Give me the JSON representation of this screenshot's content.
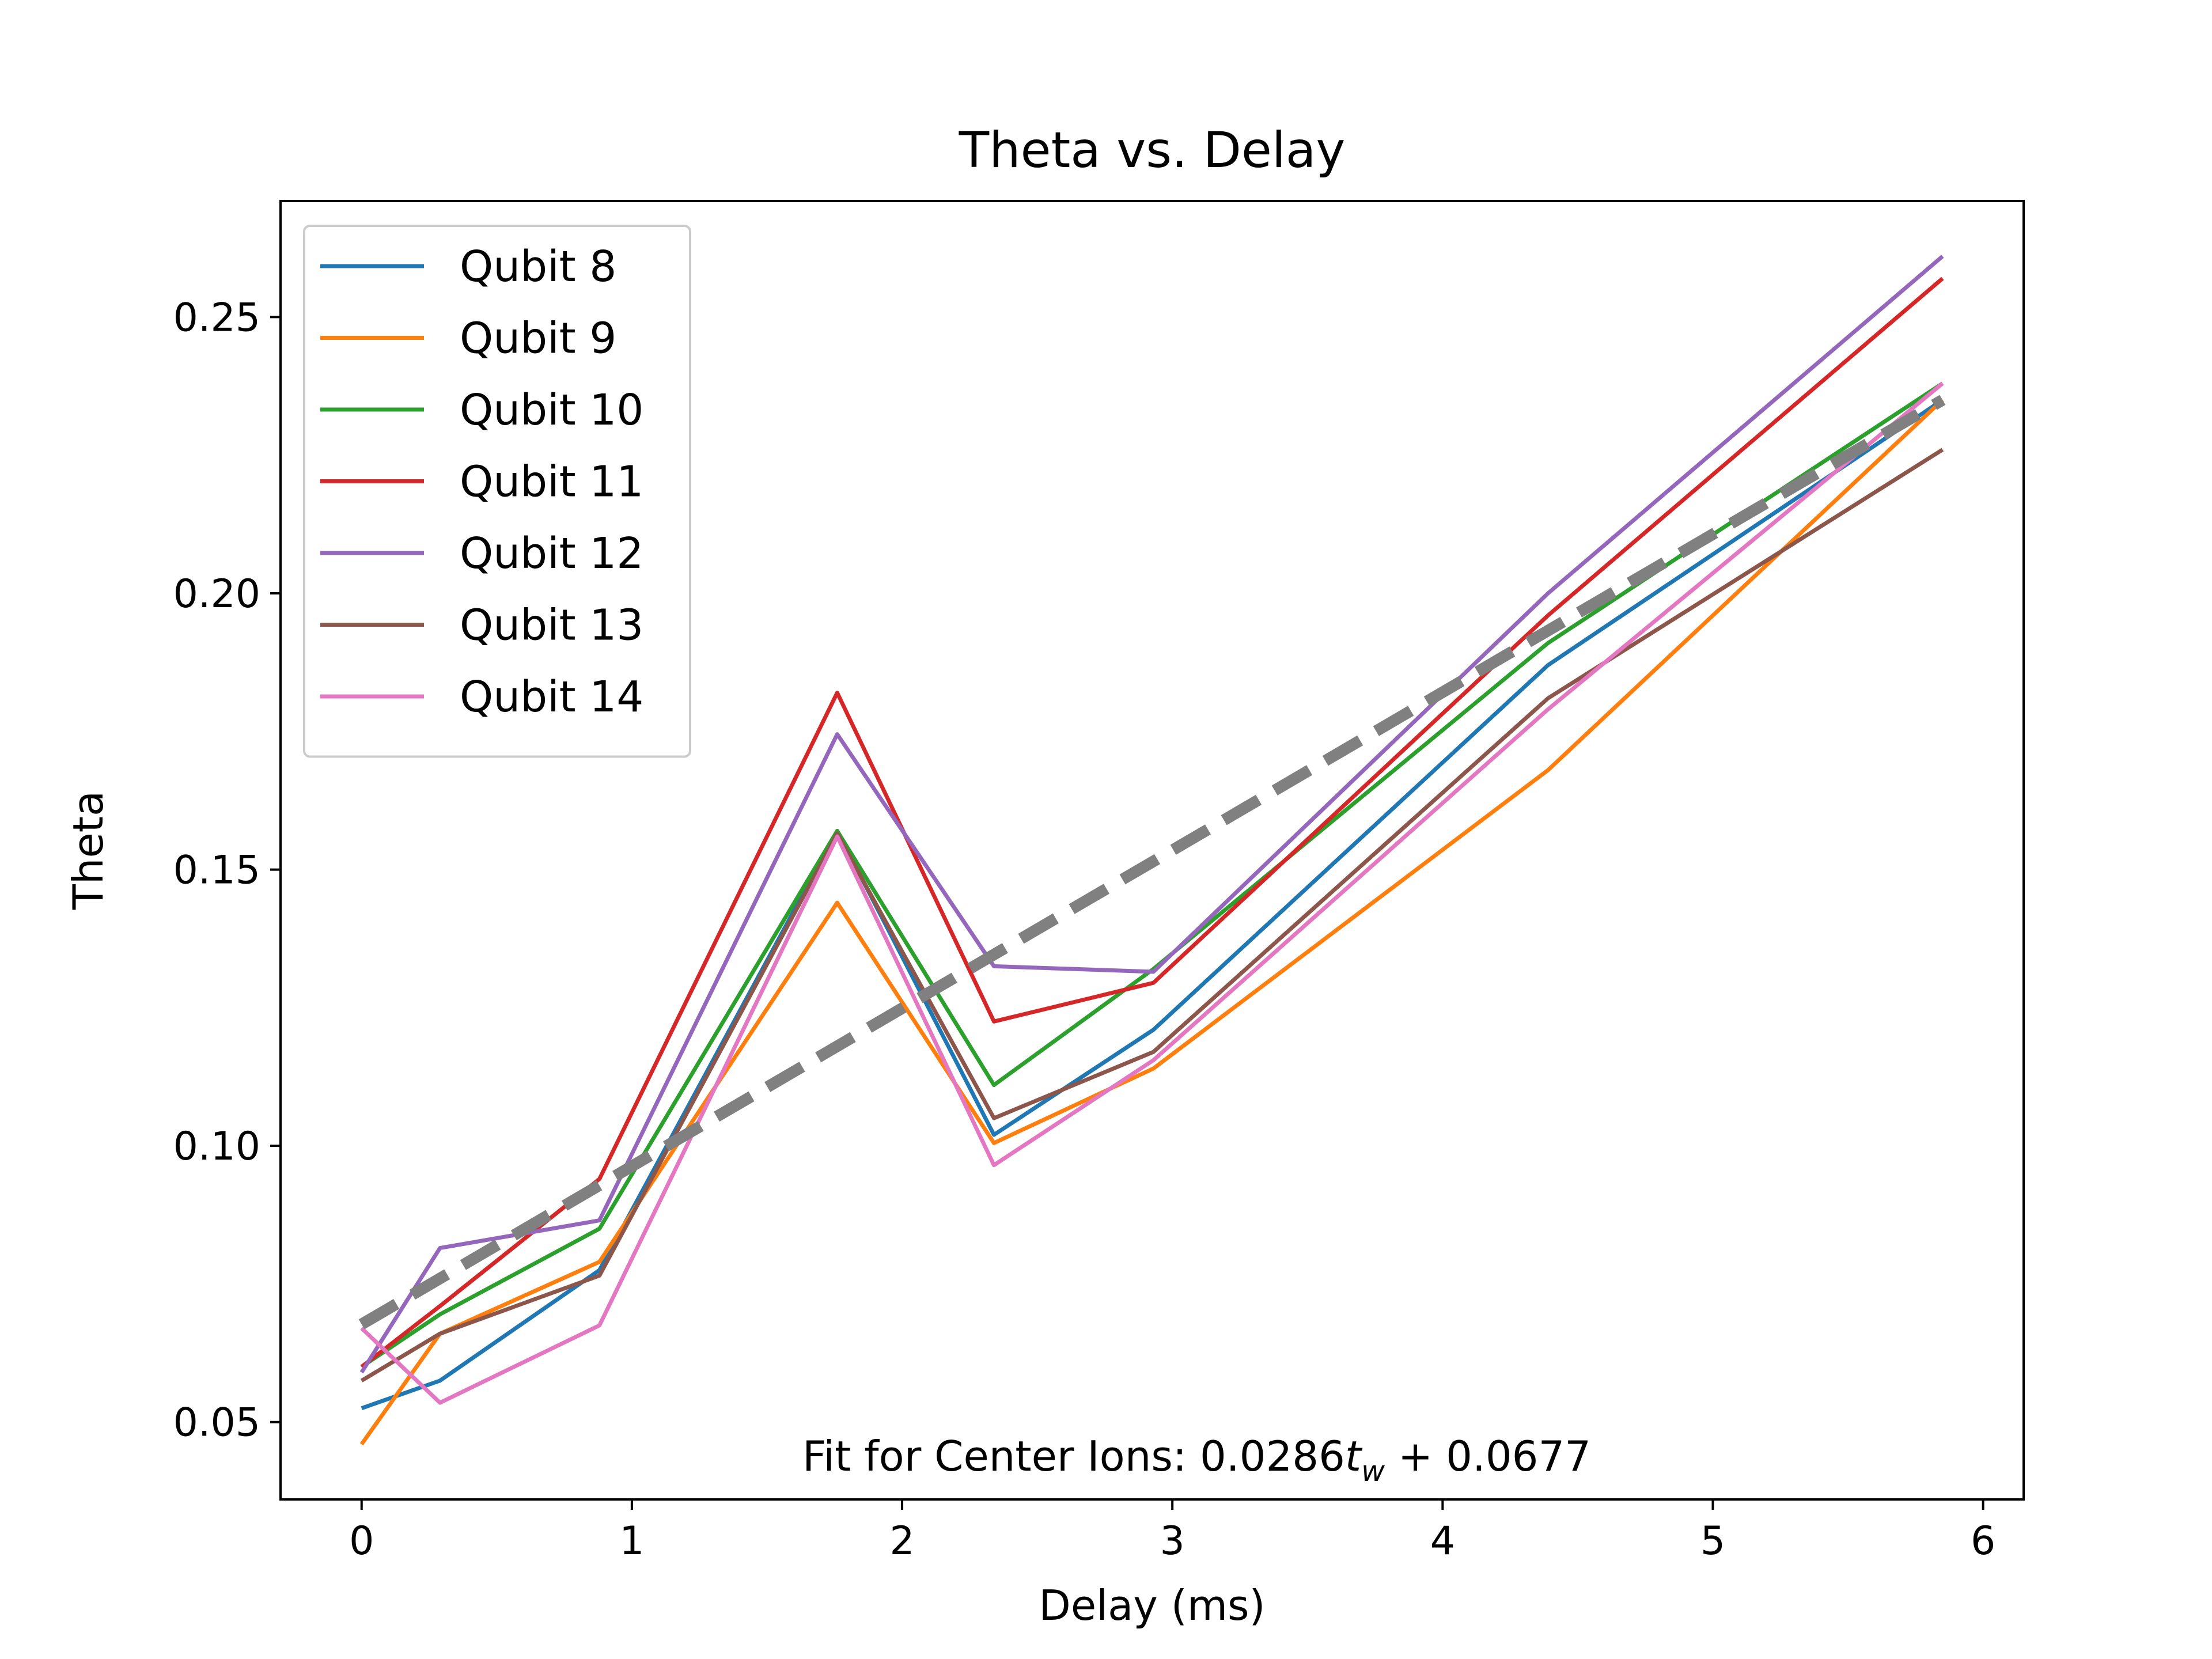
{
  "chart_data": {
    "type": "line",
    "title": "Theta vs. Delay",
    "xlabel": "Delay (ms)",
    "ylabel": "Theta",
    "xlim": [
      -0.3,
      6.15
    ],
    "ylim": [
      0.036,
      0.271
    ],
    "xticks": [
      0,
      1,
      2,
      3,
      4,
      5,
      6
    ],
    "xtick_labels": [
      "0",
      "1",
      "2",
      "3",
      "4",
      "5",
      "6"
    ],
    "yticks": [
      0.05,
      0.1,
      0.15,
      0.2,
      0.25
    ],
    "ytick_labels": [
      "0.05",
      "0.10",
      "0.15",
      "0.20",
      "0.25"
    ],
    "grid": false,
    "legend_position": "upper-left",
    "x": [
      0,
      0.29,
      0.88,
      1.76,
      2.34,
      2.93,
      4.39,
      5.85
    ],
    "series": [
      {
        "name": "Qubit 8",
        "color": "#1f77b4",
        "values": [
          0.0525,
          0.0575,
          0.0775,
          0.157,
          0.102,
          0.121,
          0.187,
          0.235
        ]
      },
      {
        "name": "Qubit 9",
        "color": "#ff7f0e",
        "values": [
          0.046,
          0.066,
          0.079,
          0.144,
          0.1005,
          0.114,
          0.168,
          0.235
        ]
      },
      {
        "name": "Qubit 10",
        "color": "#2ca02c",
        "values": [
          0.06,
          0.0695,
          0.085,
          0.157,
          0.111,
          0.132,
          0.191,
          0.238
        ]
      },
      {
        "name": "Qubit 11",
        "color": "#d62728",
        "values": [
          0.06,
          0.071,
          0.094,
          0.182,
          0.1225,
          0.1295,
          0.196,
          0.257
        ]
      },
      {
        "name": "Qubit 12",
        "color": "#9467bd",
        "values": [
          0.059,
          0.0815,
          0.0865,
          0.1745,
          0.1325,
          0.1315,
          0.2,
          0.261
        ]
      },
      {
        "name": "Qubit 13",
        "color": "#8c564b",
        "values": [
          0.0575,
          0.066,
          0.0765,
          0.1565,
          0.105,
          0.117,
          0.181,
          0.226
        ]
      },
      {
        "name": "Qubit 14",
        "color": "#e377c2",
        "values": [
          0.067,
          0.0535,
          0.0675,
          0.156,
          0.0965,
          0.1155,
          0.179,
          0.238
        ]
      }
    ],
    "fit_line": {
      "color": "#808080",
      "slope": 0.0286,
      "intercept": 0.0677,
      "x_range": [
        0,
        5.85
      ],
      "style": "dashed"
    },
    "annotation_prefix": "Fit for Center Ions: 0.0286",
    "annotation_var": "t",
    "annotation_sub": "w",
    "annotation_suffix": " + 0.0677"
  }
}
